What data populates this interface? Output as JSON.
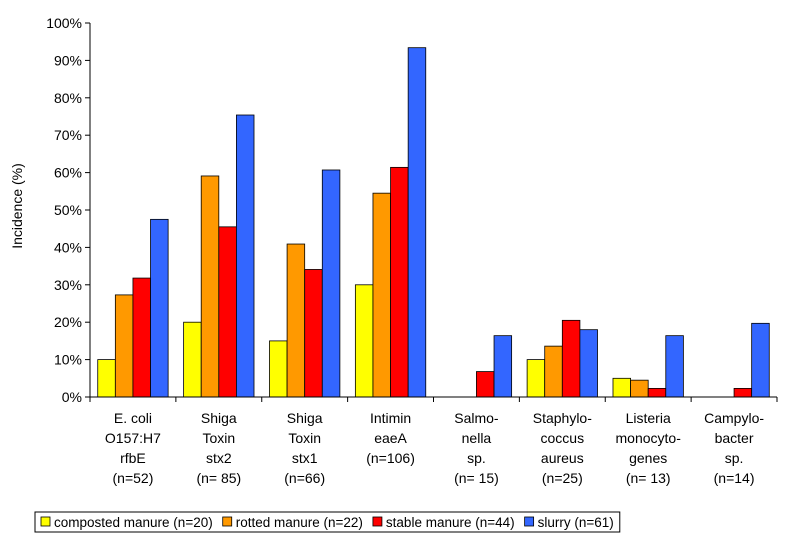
{
  "chart_data": {
    "type": "bar",
    "title": "",
    "xlabel": "",
    "ylabel": "Incidence (%)",
    "ylim": [
      0,
      100
    ],
    "yticks": [
      "0%",
      "10%",
      "20%",
      "30%",
      "40%",
      "50%",
      "60%",
      "70%",
      "80%",
      "90%",
      "100%"
    ],
    "grid": false,
    "legend_position": "bottom",
    "categories": [
      [
        "E. coli",
        "O157:H7",
        "rfbE",
        "(n=52)"
      ],
      [
        "Shiga",
        "Toxin",
        "stx2",
        "(n= 85)"
      ],
      [
        "Shiga",
        "Toxin",
        "stx1",
        "(n=66)"
      ],
      [
        "Intimin",
        "eaeA",
        "(n=106)"
      ],
      [
        "Salmo-",
        "nella",
        "sp.",
        "(n= 15)"
      ],
      [
        "Staphylo-",
        "coccus",
        "aureus",
        "(n=25)"
      ],
      [
        "Listeria",
        "monocyto-",
        "genes",
        "(n= 13)"
      ],
      [
        "Campylo-",
        "bacter",
        "sp.",
        "(n=14)"
      ]
    ],
    "series": [
      {
        "name": "composted manure (n=20)",
        "color": "#ffff00",
        "values": [
          10,
          20,
          15,
          30,
          0,
          10,
          5,
          0
        ]
      },
      {
        "name": "rotted manure (n=22)",
        "color": "#ff9900",
        "values": [
          27.3,
          59.1,
          40.9,
          54.5,
          0,
          13.6,
          4.5,
          0
        ]
      },
      {
        "name": "stable manure (n=44)",
        "color": "#ff0000",
        "values": [
          31.8,
          45.5,
          34.1,
          61.4,
          6.8,
          20.5,
          2.3,
          2.3
        ]
      },
      {
        "name": "slurry (n=61)",
        "color": "#3366ff",
        "values": [
          47.5,
          75.4,
          60.7,
          93.4,
          16.4,
          18.0,
          16.4,
          19.7
        ]
      }
    ]
  }
}
